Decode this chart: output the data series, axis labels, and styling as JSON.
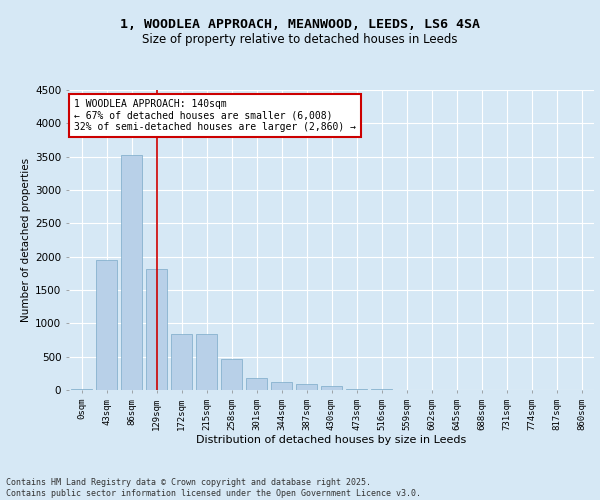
{
  "title_line1": "1, WOODLEA APPROACH, MEANWOOD, LEEDS, LS6 4SA",
  "title_line2": "Size of property relative to detached houses in Leeds",
  "xlabel": "Distribution of detached houses by size in Leeds",
  "ylabel": "Number of detached properties",
  "categories": [
    "0sqm",
    "43sqm",
    "86sqm",
    "129sqm",
    "172sqm",
    "215sqm",
    "258sqm",
    "301sqm",
    "344sqm",
    "387sqm",
    "430sqm",
    "473sqm",
    "516sqm",
    "559sqm",
    "602sqm",
    "645sqm",
    "688sqm",
    "731sqm",
    "774sqm",
    "817sqm",
    "860sqm"
  ],
  "values": [
    20,
    1950,
    3520,
    1820,
    840,
    840,
    460,
    175,
    120,
    90,
    60,
    20,
    10,
    5,
    2,
    1,
    1,
    0,
    0,
    0,
    0
  ],
  "bar_color": "#b8d0e8",
  "bar_edge_color": "#7aaac8",
  "vline_x": 3.0,
  "vline_color": "#cc0000",
  "annotation_text": "1 WOODLEA APPROACH: 140sqm\n← 67% of detached houses are smaller (6,008)\n32% of semi-detached houses are larger (2,860) →",
  "annotation_box_color": "#ffffff",
  "annotation_box_edge": "#cc0000",
  "bg_color": "#d6e8f5",
  "plot_bg_color": "#d6e8f5",
  "grid_color": "#ffffff",
  "footer_line1": "Contains HM Land Registry data © Crown copyright and database right 2025.",
  "footer_line2": "Contains public sector information licensed under the Open Government Licence v3.0.",
  "ylim": [
    0,
    4500
  ],
  "yticks": [
    0,
    500,
    1000,
    1500,
    2000,
    2500,
    3000,
    3500,
    4000,
    4500
  ]
}
